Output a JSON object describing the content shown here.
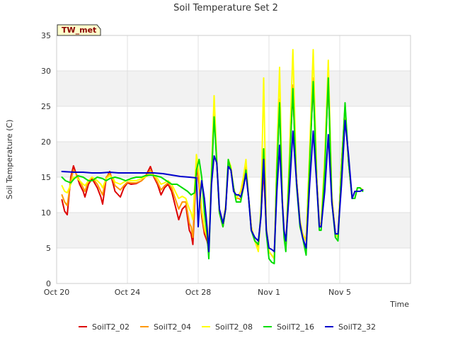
{
  "chart_data": {
    "type": "line",
    "title": "Soil Temperature Set 2",
    "site_label": "TW_met",
    "xlabel": "Time",
    "ylabel": "Soil Temperature (C)",
    "xlim": [
      0,
      20
    ],
    "ylim": [
      0,
      35
    ],
    "x_ticks": [
      {
        "value": 0,
        "label": "Oct 20"
      },
      {
        "value": 4,
        "label": "Oct 24"
      },
      {
        "value": 8,
        "label": "Oct 28"
      },
      {
        "value": 12,
        "label": "Nov 1"
      },
      {
        "value": 16,
        "label": "Nov 5"
      }
    ],
    "y_ticks": [
      0,
      5,
      10,
      15,
      20,
      25,
      30,
      35
    ],
    "grid": true,
    "legend_position": "bottom",
    "series": [
      {
        "name": "SoilT2_02",
        "color": "#dd0000",
        "x": [
          0.3,
          0.45,
          0.6,
          0.8,
          0.95,
          1.1,
          1.3,
          1.5,
          1.6,
          1.8,
          2.0,
          2.3,
          2.5,
          2.6,
          2.8,
          3.0,
          3.2,
          3.3,
          3.6,
          3.8,
          4.0,
          4.2,
          4.5,
          4.8,
          5.0,
          5.3,
          5.5,
          5.7,
          5.9,
          6.1,
          6.3,
          6.5,
          6.7,
          6.9,
          7.1,
          7.3,
          7.5,
          7.6,
          7.7,
          7.9,
          8.05,
          8.2,
          8.35,
          8.5,
          8.6,
          8.75,
          8.9,
          9.05,
          9.2,
          9.4,
          9.55,
          9.7,
          9.85,
          10.0,
          10.15,
          10.3,
          10.4,
          10.55,
          10.7,
          10.85,
          11.0,
          11.2,
          11.4,
          11.55,
          11.7,
          11.85,
          12.0,
          12.15,
          12.3,
          12.45,
          12.6,
          12.75,
          12.85,
          12.95,
          13.15,
          13.35,
          13.55,
          13.75,
          13.9,
          14.1,
          14.3,
          14.5,
          14.7,
          14.85,
          14.95,
          15.15,
          15.35,
          15.55,
          15.75,
          15.9,
          16.1,
          16.3,
          16.5,
          16.7,
          16.85,
          17.0,
          17.15,
          17.3
        ],
        "values": [
          11.8,
          10.2,
          9.7,
          15.0,
          16.6,
          15.5,
          14.0,
          13.0,
          12.2,
          14.0,
          14.8,
          13.5,
          12.2,
          11.2,
          14.8,
          15.8,
          14.0,
          13.0,
          12.2,
          13.5,
          14.2,
          14.0,
          14.1,
          14.5,
          15.0,
          16.5,
          15.0,
          14.0,
          12.5,
          13.5,
          14.0,
          13.0,
          11.0,
          9.0,
          10.5,
          11.0,
          7.5,
          7.0,
          5.5,
          16.5,
          14.0,
          9.5,
          7.0,
          6.0,
          4.8,
          15.0,
          24.5,
          17.0,
          10.0,
          8.0,
          10.5,
          17.0,
          16.0,
          13.5,
          12.0,
          12.0,
          11.8,
          14.0,
          16.5,
          12.0,
          8.0,
          6.0,
          5.5,
          10.0,
          16.0,
          7.5,
          4.5,
          4.0,
          3.5,
          17.0,
          25.0,
          12.0,
          7.0,
          5.0,
          17.0,
          27.0,
          15.0,
          8.5,
          7.0,
          6.0,
          18.0,
          28.0,
          15.0,
          8.0,
          8.0,
          17.0,
          28.5,
          12.0,
          7.0,
          6.5,
          17.0,
          24.5,
          17.0,
          12.0,
          12.0,
          13.5,
          13.5,
          13.2
        ]
      },
      {
        "name": "SoilT2_04",
        "color": "#ff9900",
        "x": [
          0.3,
          0.45,
          0.6,
          0.8,
          0.95,
          1.1,
          1.3,
          1.5,
          1.6,
          1.8,
          2.0,
          2.3,
          2.5,
          2.6,
          2.8,
          3.0,
          3.2,
          3.3,
          3.6,
          3.8,
          4.0,
          4.2,
          4.5,
          4.8,
          5.0,
          5.3,
          5.5,
          5.7,
          5.9,
          6.1,
          6.3,
          6.5,
          6.7,
          6.9,
          7.1,
          7.3,
          7.5,
          7.6,
          7.7,
          7.9,
          8.05,
          8.2,
          8.35,
          8.5,
          8.6,
          8.75,
          8.9,
          9.05,
          9.2,
          9.4,
          9.55,
          9.7,
          9.85,
          10.0,
          10.15,
          10.3,
          10.4,
          10.55,
          10.7,
          10.85,
          11.0,
          11.2,
          11.4,
          11.55,
          11.7,
          11.85,
          12.0,
          12.15,
          12.3,
          12.45,
          12.6,
          12.75,
          12.85,
          12.95,
          13.15,
          13.35,
          13.55,
          13.75,
          13.9,
          14.1,
          14.3,
          14.5,
          14.7,
          14.85,
          14.95,
          15.15,
          15.35,
          15.55,
          15.75,
          15.9,
          16.1,
          16.3,
          16.5,
          16.7,
          16.85,
          17.0,
          17.15,
          17.3
        ],
        "values": [
          12.5,
          11.5,
          11.0,
          14.5,
          16.0,
          15.5,
          14.5,
          13.5,
          13.0,
          14.5,
          15.0,
          14.0,
          13.0,
          12.5,
          15.0,
          15.5,
          14.5,
          13.8,
          13.2,
          13.8,
          14.3,
          14.2,
          14.2,
          14.5,
          15.0,
          16.0,
          15.2,
          14.3,
          13.2,
          13.8,
          14.2,
          13.5,
          12.0,
          10.5,
          11.5,
          11.5,
          8.5,
          8.0,
          6.5,
          17.0,
          14.5,
          10.0,
          7.5,
          6.5,
          5.0,
          15.0,
          25.0,
          17.0,
          10.0,
          8.0,
          10.5,
          17.0,
          16.0,
          13.5,
          12.0,
          12.0,
          11.8,
          14.0,
          16.5,
          12.0,
          8.0,
          6.0,
          5.0,
          10.0,
          17.0,
          7.5,
          4.5,
          4.0,
          3.5,
          17.0,
          26.0,
          12.0,
          7.0,
          5.0,
          17.0,
          28.0,
          15.0,
          8.5,
          7.0,
          6.0,
          18.0,
          29.0,
          15.0,
          8.0,
          8.0,
          17.0,
          29.5,
          12.0,
          7.0,
          6.5,
          17.0,
          25.0,
          17.0,
          12.0,
          12.0,
          13.5,
          13.5,
          13.2
        ]
      },
      {
        "name": "SoilT2_08",
        "color": "#ffff00",
        "x": [
          0.3,
          0.45,
          0.6,
          0.8,
          0.95,
          1.1,
          1.3,
          1.5,
          1.6,
          1.8,
          2.0,
          2.3,
          2.5,
          2.6,
          2.8,
          3.0,
          3.2,
          3.3,
          3.6,
          3.8,
          4.0,
          4.2,
          4.5,
          4.8,
          5.0,
          5.3,
          5.5,
          5.7,
          5.9,
          6.1,
          6.3,
          6.5,
          6.7,
          6.9,
          7.1,
          7.3,
          7.5,
          7.6,
          7.7,
          7.9,
          8.05,
          8.2,
          8.35,
          8.5,
          8.6,
          8.75,
          8.9,
          9.05,
          9.2,
          9.4,
          9.55,
          9.7,
          9.85,
          10.0,
          10.15,
          10.3,
          10.4,
          10.55,
          10.7,
          10.85,
          11.0,
          11.2,
          11.4,
          11.55,
          11.7,
          11.85,
          12.0,
          12.15,
          12.3,
          12.45,
          12.6,
          12.75,
          12.85,
          12.95,
          13.15,
          13.35,
          13.55,
          13.75,
          13.9,
          14.1,
          14.3,
          14.5,
          14.7,
          14.85,
          14.95,
          15.15,
          15.35,
          15.55,
          15.75,
          15.9,
          16.1,
          16.3,
          16.5,
          16.7,
          16.85,
          17.0,
          17.15,
          17.3
        ],
        "values": [
          13.8,
          13.0,
          12.8,
          14.0,
          15.0,
          15.0,
          14.5,
          14.0,
          13.8,
          14.5,
          15.0,
          14.5,
          14.0,
          13.5,
          14.8,
          15.2,
          14.8,
          14.3,
          14.0,
          14.3,
          14.6,
          14.5,
          14.5,
          14.8,
          15.0,
          15.5,
          15.2,
          14.8,
          14.0,
          14.2,
          14.5,
          14.0,
          13.0,
          12.0,
          12.3,
          12.0,
          10.5,
          10.0,
          9.0,
          18.2,
          15.5,
          10.5,
          8.0,
          6.5,
          5.5,
          16.0,
          26.5,
          17.5,
          10.0,
          8.5,
          11.0,
          17.5,
          16.5,
          13.5,
          12.0,
          12.5,
          13.0,
          15.0,
          17.5,
          12.0,
          8.0,
          6.0,
          4.5,
          11.0,
          29.0,
          8.0,
          4.5,
          4.0,
          3.5,
          18.0,
          30.5,
          12.5,
          7.0,
          5.0,
          18.0,
          33.0,
          15.0,
          9.0,
          7.0,
          6.0,
          19.0,
          33.0,
          15.0,
          8.5,
          8.5,
          18.0,
          31.5,
          12.5,
          7.0,
          6.5,
          17.0,
          25.0,
          17.0,
          12.0,
          12.0,
          13.5,
          13.5,
          13.2
        ]
      },
      {
        "name": "SoilT2_16",
        "color": "#00dd00",
        "x": [
          0.3,
          0.5,
          0.8,
          1.0,
          1.2,
          1.5,
          1.8,
          2.0,
          2.3,
          2.6,
          2.8,
          3.0,
          3.3,
          3.6,
          3.9,
          4.2,
          4.5,
          4.8,
          5.0,
          5.3,
          5.6,
          5.9,
          6.2,
          6.5,
          6.8,
          7.1,
          7.4,
          7.6,
          7.8,
          7.9,
          8.05,
          8.2,
          8.35,
          8.5,
          8.6,
          8.75,
          8.9,
          9.05,
          9.2,
          9.4,
          9.55,
          9.7,
          9.85,
          10.0,
          10.15,
          10.3,
          10.4,
          10.55,
          10.7,
          10.85,
          11.0,
          11.2,
          11.4,
          11.55,
          11.7,
          11.85,
          12.0,
          12.15,
          12.3,
          12.45,
          12.6,
          12.75,
          12.85,
          12.95,
          13.15,
          13.35,
          13.55,
          13.75,
          13.9,
          14.1,
          14.3,
          14.5,
          14.7,
          14.85,
          14.95,
          15.15,
          15.35,
          15.55,
          15.75,
          15.9,
          16.1,
          16.3,
          16.5,
          16.7,
          16.85,
          17.0,
          17.15,
          17.3
        ],
        "values": [
          15.0,
          14.5,
          14.2,
          14.8,
          15.2,
          15.0,
          14.5,
          14.5,
          15.0,
          14.8,
          14.5,
          14.8,
          15.0,
          14.8,
          14.5,
          14.8,
          15.0,
          15.0,
          15.2,
          15.3,
          15.2,
          15.0,
          14.5,
          14.0,
          14.0,
          13.5,
          13.0,
          12.5,
          12.8,
          16.0,
          17.5,
          15.0,
          10.0,
          7.0,
          3.5,
          15.0,
          23.5,
          17.0,
          10.0,
          8.0,
          10.5,
          17.5,
          16.0,
          13.5,
          11.5,
          11.5,
          11.5,
          13.5,
          16.0,
          12.0,
          7.5,
          6.0,
          5.5,
          10.0,
          19.0,
          7.0,
          3.5,
          3.0,
          2.8,
          16.0,
          25.5,
          11.5,
          6.5,
          4.5,
          16.0,
          27.5,
          14.0,
          8.0,
          6.5,
          4.0,
          17.0,
          28.5,
          14.0,
          7.5,
          7.5,
          16.0,
          29.0,
          11.5,
          6.5,
          6.0,
          16.0,
          25.5,
          17.0,
          12.0,
          12.0,
          13.5,
          13.5,
          13.0
        ]
      },
      {
        "name": "SoilT2_32",
        "color": "#0000cc",
        "x": [
          0.3,
          1.0,
          1.5,
          2.0,
          2.5,
          3.0,
          3.5,
          4.0,
          4.5,
          5.0,
          5.5,
          6.0,
          6.5,
          7.0,
          7.5,
          7.9,
          8.0,
          8.1,
          8.2,
          8.35,
          8.5,
          8.6,
          8.75,
          8.9,
          9.05,
          9.2,
          9.4,
          9.55,
          9.7,
          9.85,
          10.0,
          10.15,
          10.3,
          10.4,
          10.55,
          10.7,
          10.85,
          11.0,
          11.2,
          11.4,
          11.55,
          11.7,
          11.85,
          12.0,
          12.15,
          12.3,
          12.45,
          12.6,
          12.75,
          12.85,
          12.95,
          13.15,
          13.35,
          13.55,
          13.75,
          13.9,
          14.1,
          14.3,
          14.5,
          14.7,
          14.85,
          14.95,
          15.15,
          15.35,
          15.55,
          15.75,
          15.9,
          16.1,
          16.3,
          16.5,
          16.7,
          16.85,
          17.0,
          17.15,
          17.3
        ],
        "values": [
          15.8,
          15.7,
          15.7,
          15.6,
          15.6,
          15.7,
          15.6,
          15.6,
          15.6,
          15.6,
          15.6,
          15.5,
          15.3,
          15.1,
          15.0,
          14.9,
          8.0,
          12.0,
          14.5,
          12.0,
          8.0,
          4.5,
          14.0,
          18.0,
          17.0,
          10.5,
          8.5,
          10.5,
          16.5,
          16.0,
          13.0,
          12.5,
          12.5,
          12.2,
          13.5,
          15.5,
          12.0,
          7.5,
          6.5,
          6.0,
          9.5,
          17.5,
          7.5,
          5.0,
          4.8,
          4.5,
          13.0,
          19.5,
          11.5,
          7.5,
          6.0,
          13.0,
          21.5,
          14.5,
          8.5,
          6.5,
          5.0,
          14.0,
          21.5,
          14.0,
          8.0,
          8.0,
          13.0,
          21.0,
          11.5,
          7.0,
          7.0,
          14.0,
          23.0,
          18.0,
          12.0,
          13.0,
          13.0,
          13.0,
          13.2
        ]
      }
    ]
  }
}
